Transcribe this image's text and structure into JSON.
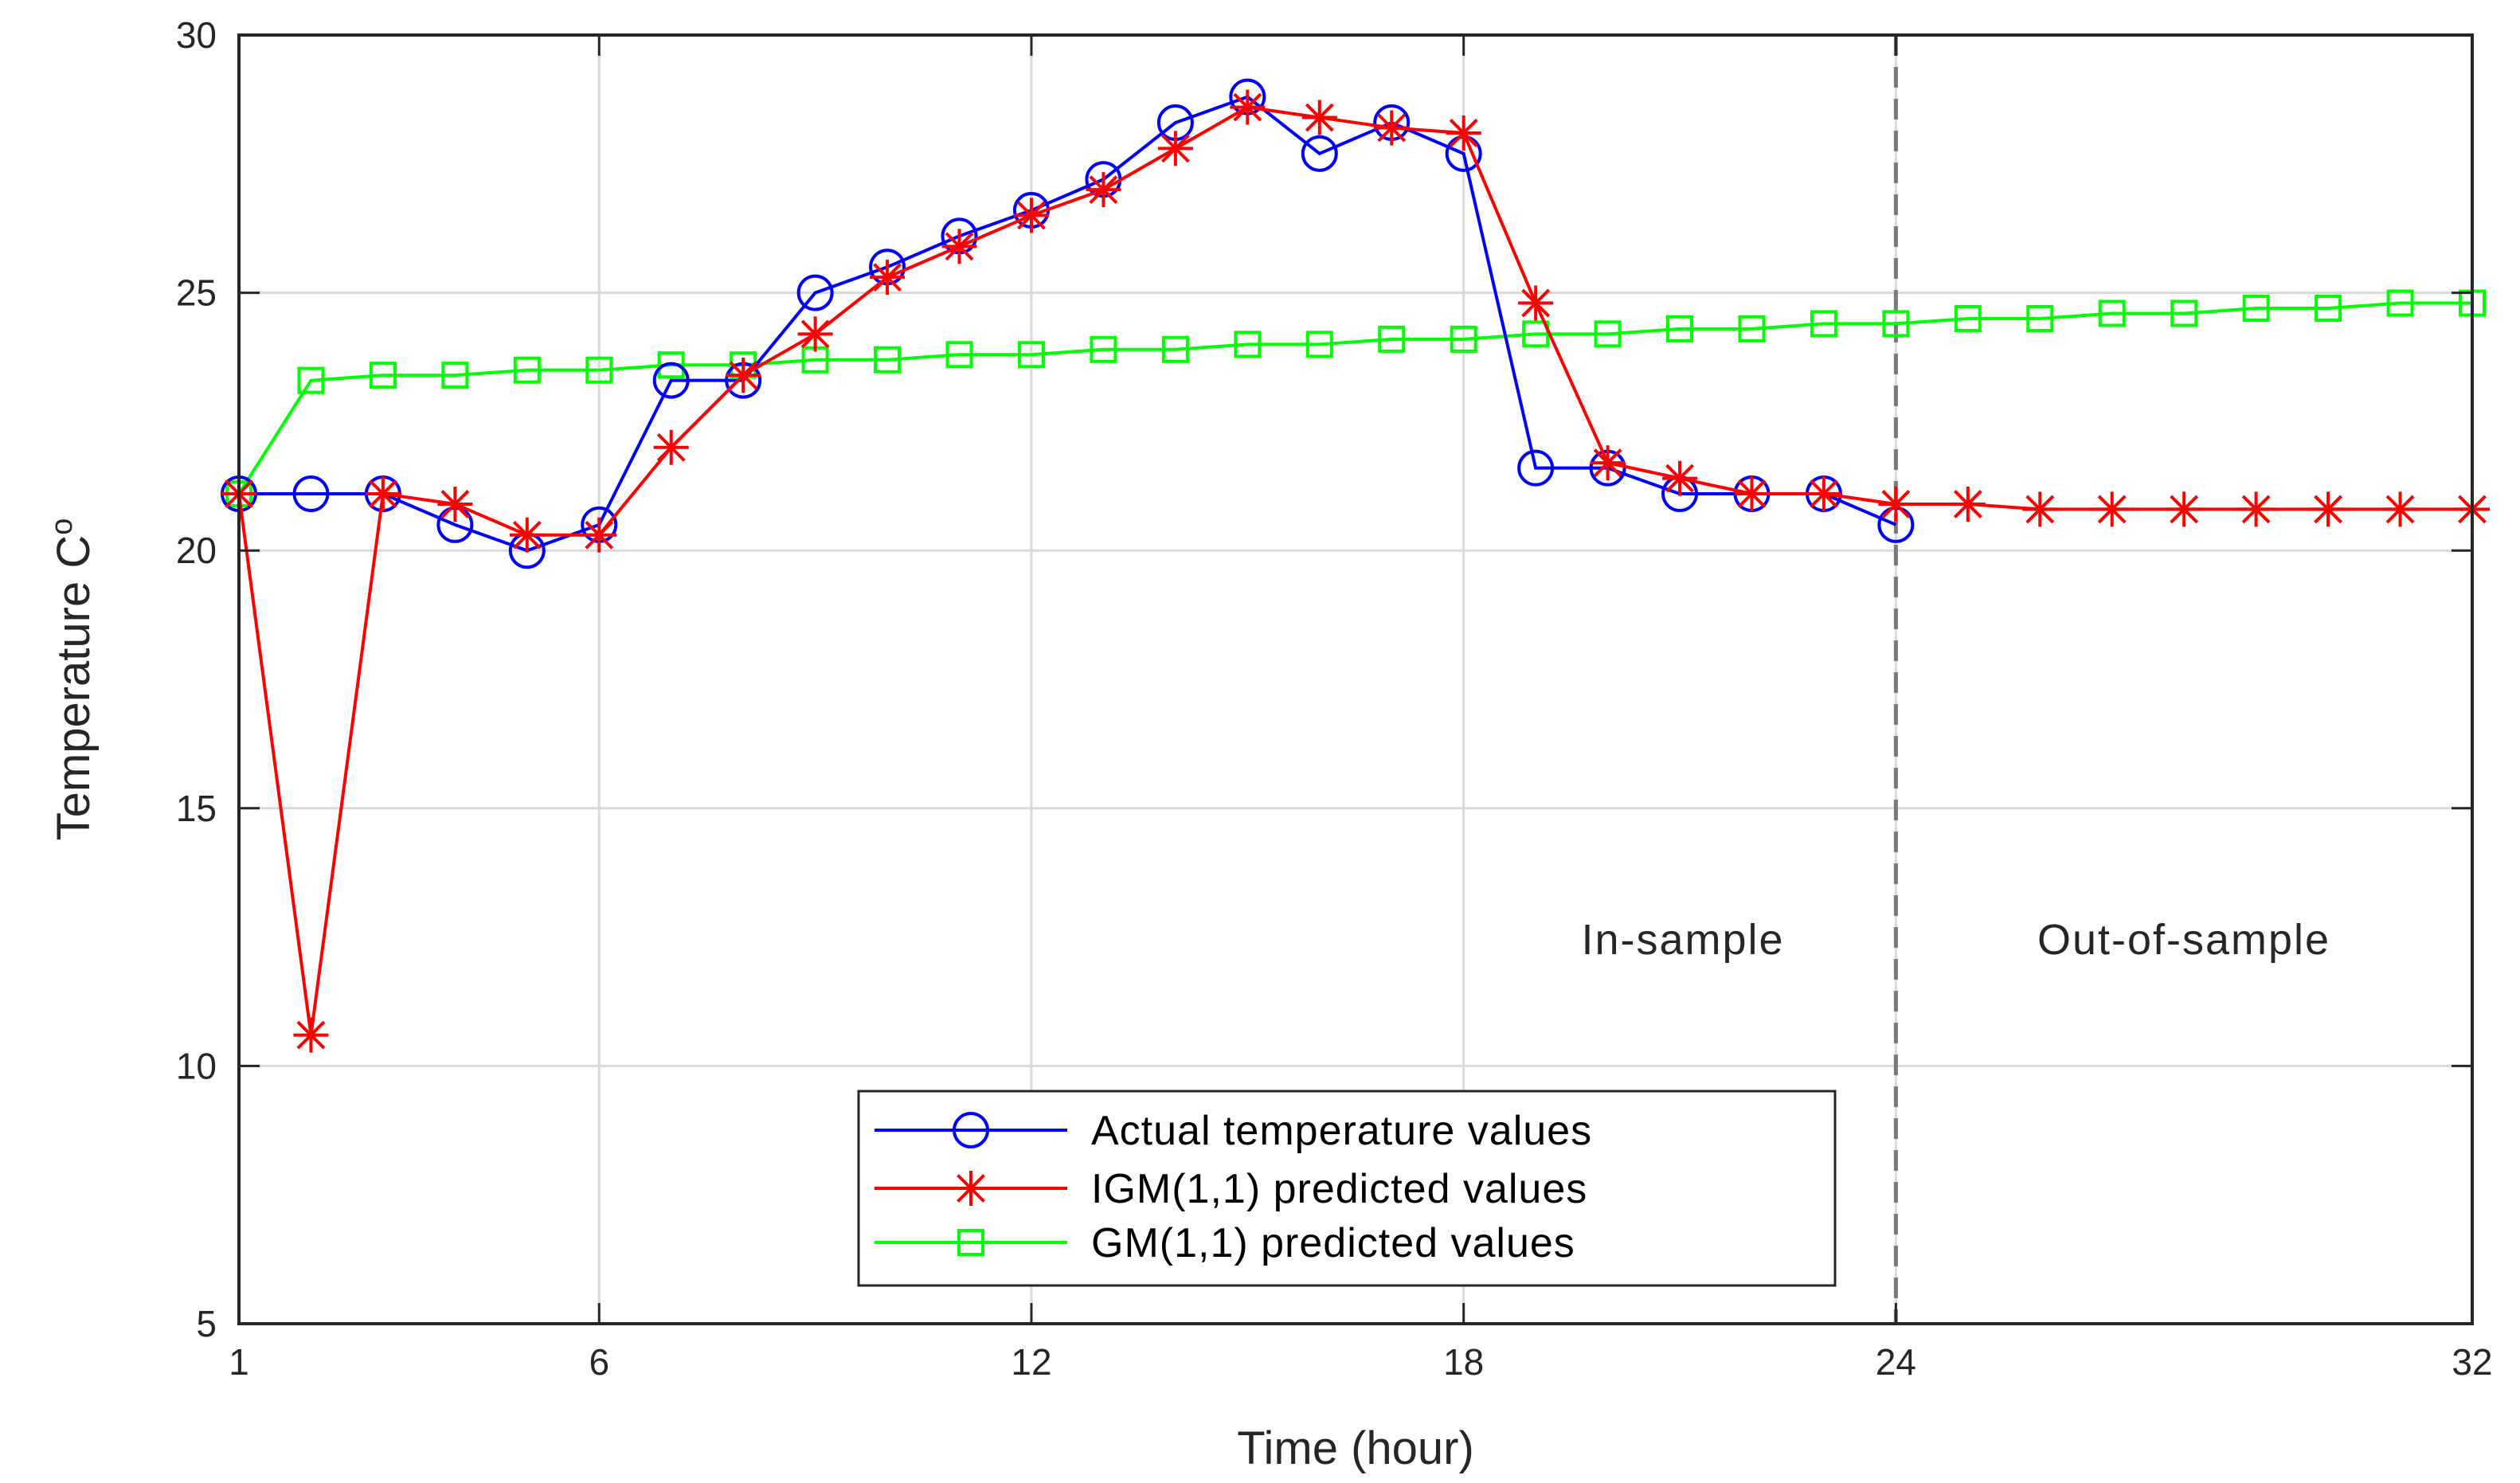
{
  "chart_data": {
    "type": "line",
    "title": "",
    "xlabel": "Time (hour)",
    "ylabel": "Temperature C",
    "ylabel_superscript": "o",
    "xlim": [
      1,
      32
    ],
    "ylim": [
      5,
      30
    ],
    "x_ticks": [
      1,
      6,
      12,
      18,
      24,
      32
    ],
    "y_ticks": [
      5,
      10,
      15,
      20,
      25,
      30
    ],
    "grid": true,
    "legend_position": "bottom-center",
    "split_x": 24,
    "annotations": [
      "In-sample",
      "Out-of-sample"
    ],
    "series": [
      {
        "name": "Actual temperature values",
        "color": "#0000ff",
        "marker": "circle",
        "x": [
          1,
          2,
          3,
          4,
          5,
          6,
          7,
          8,
          9,
          10,
          11,
          12,
          13,
          14,
          15,
          16,
          17,
          18,
          19,
          20,
          21,
          22,
          23,
          24
        ],
        "values": [
          21.1,
          21.1,
          21.1,
          20.5,
          20.0,
          20.5,
          23.3,
          23.3,
          25.0,
          25.5,
          26.1,
          26.6,
          27.2,
          28.3,
          28.8,
          27.7,
          28.3,
          27.7,
          21.6,
          21.6,
          21.1,
          21.1,
          21.1,
          20.5
        ]
      },
      {
        "name": "IGM(1,1) predicted values",
        "color": "#ff0000",
        "marker": "star",
        "x": [
          1,
          2,
          3,
          4,
          5,
          6,
          7,
          8,
          9,
          10,
          11,
          12,
          13,
          14,
          15,
          16,
          17,
          18,
          19,
          20,
          21,
          22,
          23,
          24,
          25,
          26,
          27,
          28,
          29,
          30,
          31,
          32
        ],
        "values": [
          21.1,
          10.6,
          21.1,
          20.9,
          20.3,
          20.3,
          22.0,
          23.4,
          24.2,
          25.3,
          25.9,
          26.5,
          27.0,
          27.8,
          28.6,
          28.4,
          28.2,
          28.1,
          24.8,
          21.7,
          21.4,
          21.1,
          21.1,
          20.9,
          20.9,
          20.8,
          20.8,
          20.8,
          20.8,
          20.8,
          20.8,
          20.8
        ]
      },
      {
        "name": "GM(1,1) predicted values",
        "color": "#00ff00",
        "marker": "square",
        "x": [
          1,
          2,
          3,
          4,
          5,
          6,
          7,
          8,
          9,
          10,
          11,
          12,
          13,
          14,
          15,
          16,
          17,
          18,
          19,
          20,
          21,
          22,
          23,
          24,
          25,
          26,
          27,
          28,
          29,
          30,
          31,
          32
        ],
        "values": [
          21.1,
          23.3,
          23.4,
          23.4,
          23.5,
          23.5,
          23.6,
          23.6,
          23.7,
          23.7,
          23.8,
          23.8,
          23.9,
          23.9,
          24.0,
          24.0,
          24.1,
          24.1,
          24.2,
          24.2,
          24.3,
          24.3,
          24.4,
          24.4,
          24.5,
          24.5,
          24.6,
          24.6,
          24.7,
          24.7,
          24.8,
          24.8
        ]
      }
    ]
  }
}
